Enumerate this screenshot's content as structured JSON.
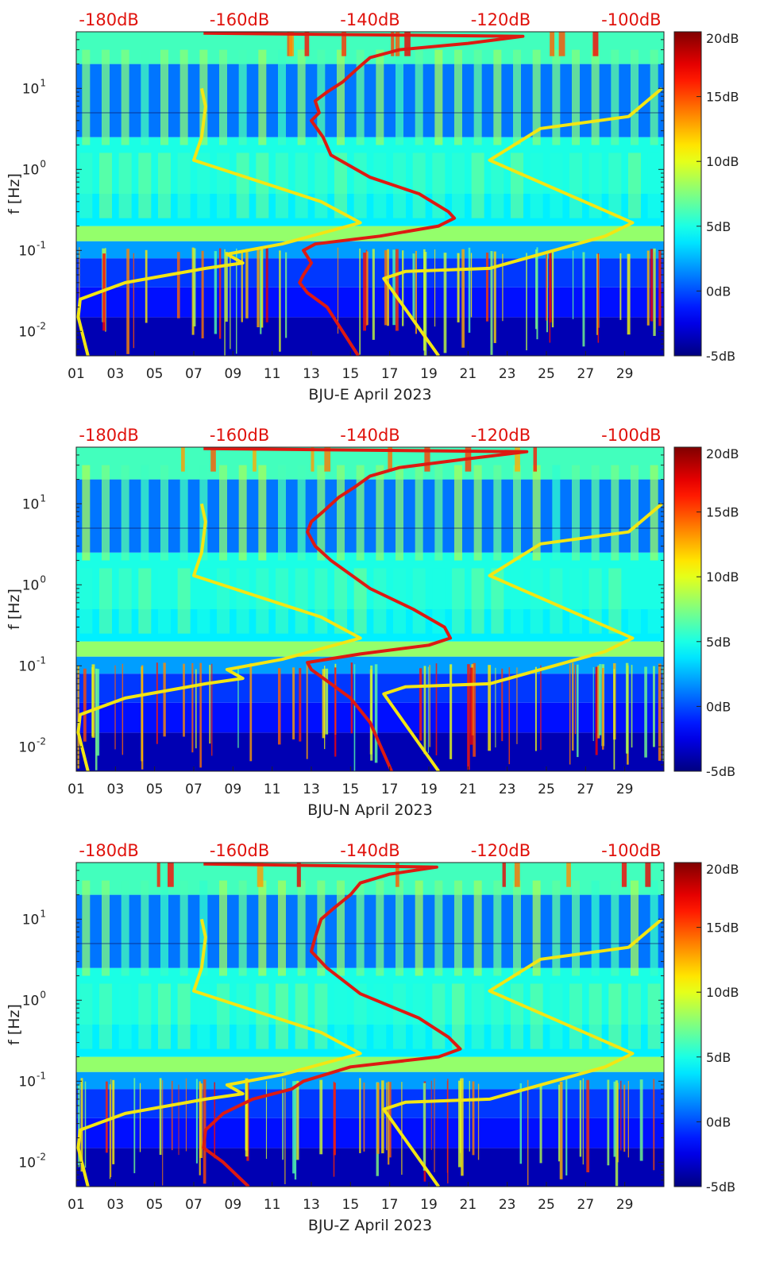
{
  "colors": {
    "noise_model_curves": "#f2e614",
    "station_psd_curve": "#dd1a12",
    "top_db_labels": "#e0120c",
    "text": "#222222"
  },
  "colormap": "jet",
  "chart_data": [
    {
      "type": "heatmap",
      "panel": "BJU-E",
      "xlabel": "BJU-E April 2023",
      "ylabel": "f [Hz]",
      "x_tick_labels": [
        "01",
        "03",
        "05",
        "07",
        "09",
        "11",
        "13",
        "15",
        "17",
        "19",
        "21",
        "23",
        "25",
        "27",
        "29"
      ],
      "x_tick_values": [
        1,
        3,
        5,
        7,
        9,
        11,
        13,
        15,
        17,
        19,
        21,
        23,
        25,
        27,
        29
      ],
      "xlim": [
        1,
        31
      ],
      "y_scale": "log",
      "ylim": [
        0.005,
        50
      ],
      "y_tick_labels": [
        "10^-2",
        "10^-1",
        "10^0",
        "10^1"
      ],
      "top_axis_labels": [
        "-180dB",
        "-160dB",
        "-140dB",
        "-120dB",
        "-100dB"
      ],
      "top_axis_range_db": [
        -185,
        -95
      ],
      "colorbar": {
        "ticks": [
          "20dB",
          "15dB",
          "10dB",
          "5dB",
          "0dB",
          "-5dB"
        ],
        "range": [
          -5,
          20
        ]
      },
      "noise_model_high": [
        [
          7.4,
          10
        ],
        [
          7.6,
          6
        ],
        [
          7.4,
          2.5
        ],
        [
          7.0,
          1.3
        ],
        [
          13.5,
          0.4
        ],
        [
          15.5,
          0.22
        ],
        [
          11.5,
          0.12
        ],
        [
          8.7,
          0.09
        ],
        [
          9.5,
          0.07
        ],
        [
          7.6,
          0.06
        ],
        [
          3.5,
          0.04
        ],
        [
          1.2,
          0.025
        ],
        [
          1.1,
          0.015
        ],
        [
          1.6,
          0.005
        ]
      ],
      "noise_model_low": [
        [
          30.9,
          10
        ],
        [
          29.2,
          4.5
        ],
        [
          24.7,
          3.2
        ],
        [
          22.1,
          1.3
        ],
        [
          29.4,
          0.22
        ],
        [
          28.0,
          0.15
        ],
        [
          22.1,
          0.06
        ],
        [
          17.8,
          0.055
        ],
        [
          16.7,
          0.045
        ],
        [
          19.5,
          0.005
        ]
      ],
      "station_psd": [
        [
          7.5,
          48
        ],
        [
          23.8,
          44
        ],
        [
          21,
          36
        ],
        [
          17.5,
          30
        ],
        [
          16,
          24
        ],
        [
          15.4,
          18
        ],
        [
          14.6,
          12
        ],
        [
          13.8,
          9
        ],
        [
          13.2,
          7
        ],
        [
          13.4,
          5
        ],
        [
          13.0,
          4
        ],
        [
          13.6,
          2.5
        ],
        [
          14.0,
          1.5
        ],
        [
          16.0,
          0.8
        ],
        [
          18.5,
          0.5
        ],
        [
          20.0,
          0.3
        ],
        [
          20.3,
          0.25
        ],
        [
          19.5,
          0.2
        ],
        [
          16.5,
          0.15
        ],
        [
          13.2,
          0.12
        ],
        [
          12.6,
          0.1
        ],
        [
          13.0,
          0.07
        ],
        [
          12.6,
          0.05
        ],
        [
          12.4,
          0.04
        ],
        [
          12.8,
          0.03
        ],
        [
          13.8,
          0.02
        ],
        [
          15.4,
          0.005
        ]
      ]
    },
    {
      "type": "heatmap",
      "panel": "BJU-N",
      "xlabel": "BJU-N April 2023",
      "ylabel": "f [Hz]",
      "x_tick_labels": [
        "01",
        "03",
        "05",
        "07",
        "09",
        "11",
        "13",
        "15",
        "17",
        "19",
        "21",
        "23",
        "25",
        "27",
        "29"
      ],
      "x_tick_values": [
        1,
        3,
        5,
        7,
        9,
        11,
        13,
        15,
        17,
        19,
        21,
        23,
        25,
        27,
        29
      ],
      "xlim": [
        1,
        31
      ],
      "y_scale": "log",
      "ylim": [
        0.005,
        50
      ],
      "y_tick_labels": [
        "10^-2",
        "10^-1",
        "10^0",
        "10^1"
      ],
      "top_axis_labels": [
        "-180dB",
        "-160dB",
        "-140dB",
        "-120dB",
        "-100dB"
      ],
      "top_axis_range_db": [
        -185,
        -95
      ],
      "colorbar": {
        "ticks": [
          "20dB",
          "15dB",
          "10dB",
          "5dB",
          "0dB",
          "-5dB"
        ],
        "range": [
          -5,
          20
        ]
      },
      "noise_model_high": [
        [
          7.4,
          10
        ],
        [
          7.6,
          6
        ],
        [
          7.4,
          2.5
        ],
        [
          7.0,
          1.3
        ],
        [
          13.5,
          0.4
        ],
        [
          15.5,
          0.22
        ],
        [
          11.5,
          0.12
        ],
        [
          8.7,
          0.09
        ],
        [
          9.5,
          0.07
        ],
        [
          7.6,
          0.06
        ],
        [
          3.5,
          0.04
        ],
        [
          1.2,
          0.025
        ],
        [
          1.1,
          0.015
        ],
        [
          1.6,
          0.005
        ]
      ],
      "noise_model_low": [
        [
          30.9,
          10
        ],
        [
          29.2,
          4.5
        ],
        [
          24.7,
          3.2
        ],
        [
          22.1,
          1.3
        ],
        [
          29.4,
          0.22
        ],
        [
          28.0,
          0.15
        ],
        [
          22.1,
          0.06
        ],
        [
          17.8,
          0.055
        ],
        [
          16.7,
          0.045
        ],
        [
          19.5,
          0.005
        ]
      ],
      "station_psd": [
        [
          7.5,
          48
        ],
        [
          24.0,
          44
        ],
        [
          21,
          36
        ],
        [
          17.5,
          28
        ],
        [
          16,
          22
        ],
        [
          15.2,
          16
        ],
        [
          14.4,
          12
        ],
        [
          13.6,
          8
        ],
        [
          13.0,
          6
        ],
        [
          12.8,
          4.5
        ],
        [
          13.2,
          3
        ],
        [
          14.0,
          2
        ],
        [
          16.0,
          0.9
        ],
        [
          18.2,
          0.5
        ],
        [
          19.8,
          0.3
        ],
        [
          20.1,
          0.22
        ],
        [
          19.0,
          0.18
        ],
        [
          15.5,
          0.14
        ],
        [
          12.8,
          0.11
        ],
        [
          13.0,
          0.09
        ],
        [
          14.0,
          0.06
        ],
        [
          15.0,
          0.04
        ],
        [
          16.0,
          0.02
        ],
        [
          17.1,
          0.005
        ]
      ]
    },
    {
      "type": "heatmap",
      "panel": "BJU-Z",
      "xlabel": "BJU-Z April 2023",
      "ylabel": "f [Hz]",
      "x_tick_labels": [
        "01",
        "03",
        "05",
        "07",
        "09",
        "11",
        "13",
        "15",
        "17",
        "19",
        "21",
        "23",
        "25",
        "27",
        "29"
      ],
      "x_tick_values": [
        1,
        3,
        5,
        7,
        9,
        11,
        13,
        15,
        17,
        19,
        21,
        23,
        25,
        27,
        29
      ],
      "xlim": [
        1,
        31
      ],
      "y_scale": "log",
      "ylim": [
        0.005,
        50
      ],
      "y_tick_labels": [
        "10^-2",
        "10^-1",
        "10^0",
        "10^1"
      ],
      "top_axis_labels": [
        "-180dB",
        "-160dB",
        "-140dB",
        "-120dB",
        "-100dB"
      ],
      "top_axis_range_db": [
        -185,
        -95
      ],
      "colorbar": {
        "ticks": [
          "20dB",
          "15dB",
          "10dB",
          "5dB",
          "0dB",
          "-5dB"
        ],
        "range": [
          -5,
          20
        ]
      },
      "noise_model_high": [
        [
          7.4,
          10
        ],
        [
          7.6,
          6
        ],
        [
          7.4,
          2.5
        ],
        [
          7.0,
          1.3
        ],
        [
          13.5,
          0.4
        ],
        [
          15.5,
          0.22
        ],
        [
          11.5,
          0.12
        ],
        [
          8.7,
          0.09
        ],
        [
          9.5,
          0.07
        ],
        [
          7.6,
          0.06
        ],
        [
          3.5,
          0.04
        ],
        [
          1.2,
          0.025
        ],
        [
          1.1,
          0.015
        ],
        [
          1.6,
          0.005
        ]
      ],
      "noise_model_low": [
        [
          30.9,
          10
        ],
        [
          29.2,
          4.5
        ],
        [
          24.7,
          3.2
        ],
        [
          22.1,
          1.3
        ],
        [
          29.4,
          0.22
        ],
        [
          28.0,
          0.15
        ],
        [
          22.1,
          0.06
        ],
        [
          17.8,
          0.055
        ],
        [
          16.7,
          0.045
        ],
        [
          19.5,
          0.005
        ]
      ],
      "station_psd": [
        [
          7.5,
          48
        ],
        [
          19.4,
          44
        ],
        [
          17,
          36
        ],
        [
          15.5,
          28
        ],
        [
          15.0,
          20
        ],
        [
          14.2,
          14
        ],
        [
          13.5,
          10
        ],
        [
          13.2,
          6
        ],
        [
          13.0,
          4
        ],
        [
          13.8,
          2.5
        ],
        [
          15.5,
          1.2
        ],
        [
          18.5,
          0.6
        ],
        [
          20.0,
          0.35
        ],
        [
          20.6,
          0.25
        ],
        [
          19.5,
          0.2
        ],
        [
          15.0,
          0.15
        ],
        [
          12.6,
          0.1
        ],
        [
          12.0,
          0.08
        ],
        [
          10.0,
          0.06
        ],
        [
          8.5,
          0.04
        ],
        [
          7.6,
          0.025
        ],
        [
          7.5,
          0.015
        ],
        [
          8.5,
          0.01
        ],
        [
          9.8,
          0.005
        ]
      ]
    }
  ]
}
